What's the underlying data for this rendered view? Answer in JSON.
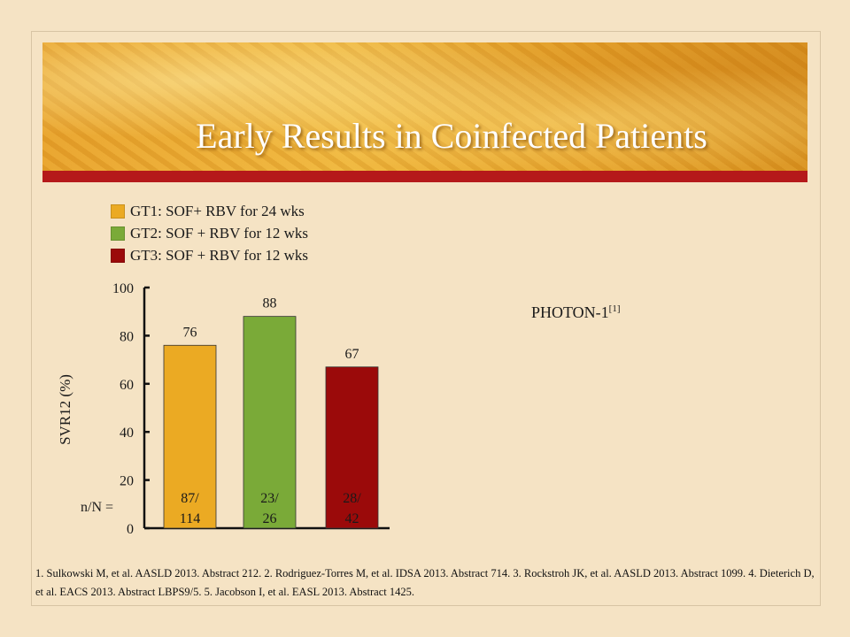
{
  "slide": {
    "title": "Early Results in Coinfected Patients",
    "study_label": "PHOTON-1",
    "study_ref": "[1]",
    "footnote": "1. Sulkowski M, et al. AASLD 2013. Abstract 212. 2. Rodriguez-Torres M, et al. IDSA 2013. Abstract 714. 3. Rockstroh JK, et al. AASLD 2013. Abstract 1099. 4. Dieterich D, et al. EACS 2013. Abstract LBPS9/5. 5. Jacobson I, et al. EASL 2013. Abstract 1425."
  },
  "chart_data": {
    "type": "bar",
    "categories": [
      "GT1: SOF+ RBV for 24 wks",
      "GT2: SOF + RBV for 12 wks",
      "GT3: SOF + RBV for 12 wks"
    ],
    "values": [
      76,
      88,
      67
    ],
    "colors": [
      "#ebaa23",
      "#7aaa38",
      "#9b0a0a"
    ],
    "n_over_N_label": "n/N =",
    "n_over_N": [
      [
        "87/",
        "114"
      ],
      [
        "23/",
        "26"
      ],
      [
        "28/",
        "42"
      ]
    ],
    "ylabel": "SVR12 (%)",
    "xlabel": "",
    "ylim": [
      0,
      100
    ],
    "yticks": [
      "0",
      "20",
      "40",
      "60",
      "80",
      "100"
    ],
    "legend_position": "top-left",
    "grid": false
  }
}
